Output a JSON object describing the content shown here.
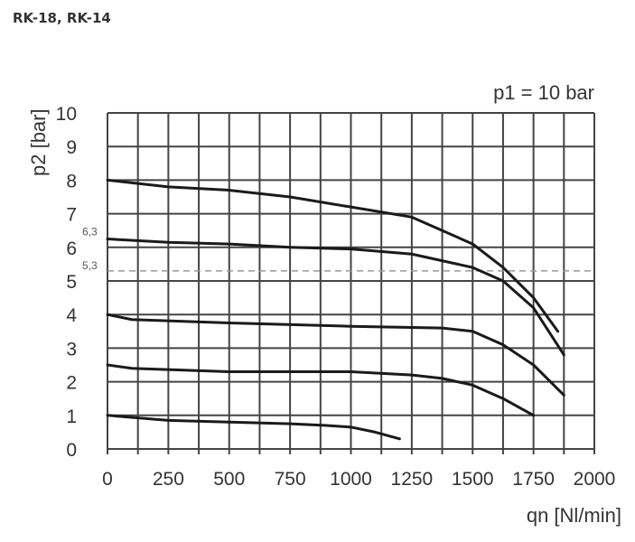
{
  "heading": "RK-18, RK-14",
  "chart_data": {
    "type": "line",
    "title": "",
    "annotation": "p1 = 10 bar",
    "xlabel": "qn [Nl/min]",
    "ylabel": "p2 [bar]",
    "xlim": [
      0,
      2000
    ],
    "ylim": [
      0,
      10
    ],
    "grid": true,
    "xticks": [
      0,
      250,
      500,
      750,
      1000,
      1250,
      1500,
      1750,
      2000
    ],
    "yticks": [
      0,
      1,
      2,
      3,
      4,
      5,
      6,
      7,
      8,
      9,
      10
    ],
    "reference_lines": [
      {
        "label": "6,3",
        "y": 6.3,
        "style": "label-only"
      },
      {
        "label": "5,3",
        "y": 5.3,
        "style": "dashed"
      }
    ],
    "line_color": "#1a1a1a",
    "series": [
      {
        "points": [
          [
            0,
            8
          ],
          [
            250,
            7.8
          ],
          [
            500,
            7.7
          ],
          [
            750,
            7.5
          ],
          [
            1000,
            7.2
          ],
          [
            1250,
            6.9
          ],
          [
            1500,
            6.1
          ],
          [
            1625,
            5.4
          ],
          [
            1750,
            4.5
          ],
          [
            1850,
            3.5
          ]
        ]
      },
      {
        "points": [
          [
            0,
            6.25
          ],
          [
            250,
            6.15
          ],
          [
            500,
            6.1
          ],
          [
            750,
            6.0
          ],
          [
            1000,
            5.95
          ],
          [
            1250,
            5.8
          ],
          [
            1500,
            5.4
          ],
          [
            1625,
            5.0
          ],
          [
            1750,
            4.2
          ],
          [
            1875,
            2.8
          ]
        ]
      },
      {
        "points": [
          [
            0,
            4
          ],
          [
            100,
            3.85
          ],
          [
            500,
            3.75
          ],
          [
            1000,
            3.65
          ],
          [
            1375,
            3.6
          ],
          [
            1500,
            3.5
          ],
          [
            1625,
            3.1
          ],
          [
            1750,
            2.5
          ],
          [
            1875,
            1.6
          ]
        ]
      },
      {
        "points": [
          [
            0,
            2.5
          ],
          [
            100,
            2.4
          ],
          [
            500,
            2.3
          ],
          [
            1000,
            2.3
          ],
          [
            1250,
            2.2
          ],
          [
            1375,
            2.1
          ],
          [
            1500,
            1.9
          ],
          [
            1625,
            1.5
          ],
          [
            1750,
            1.0
          ]
        ]
      },
      {
        "points": [
          [
            0,
            1
          ],
          [
            250,
            0.85
          ],
          [
            500,
            0.8
          ],
          [
            750,
            0.75
          ],
          [
            900,
            0.7
          ],
          [
            1000,
            0.65
          ],
          [
            1100,
            0.5
          ],
          [
            1200,
            0.3
          ]
        ]
      }
    ]
  }
}
